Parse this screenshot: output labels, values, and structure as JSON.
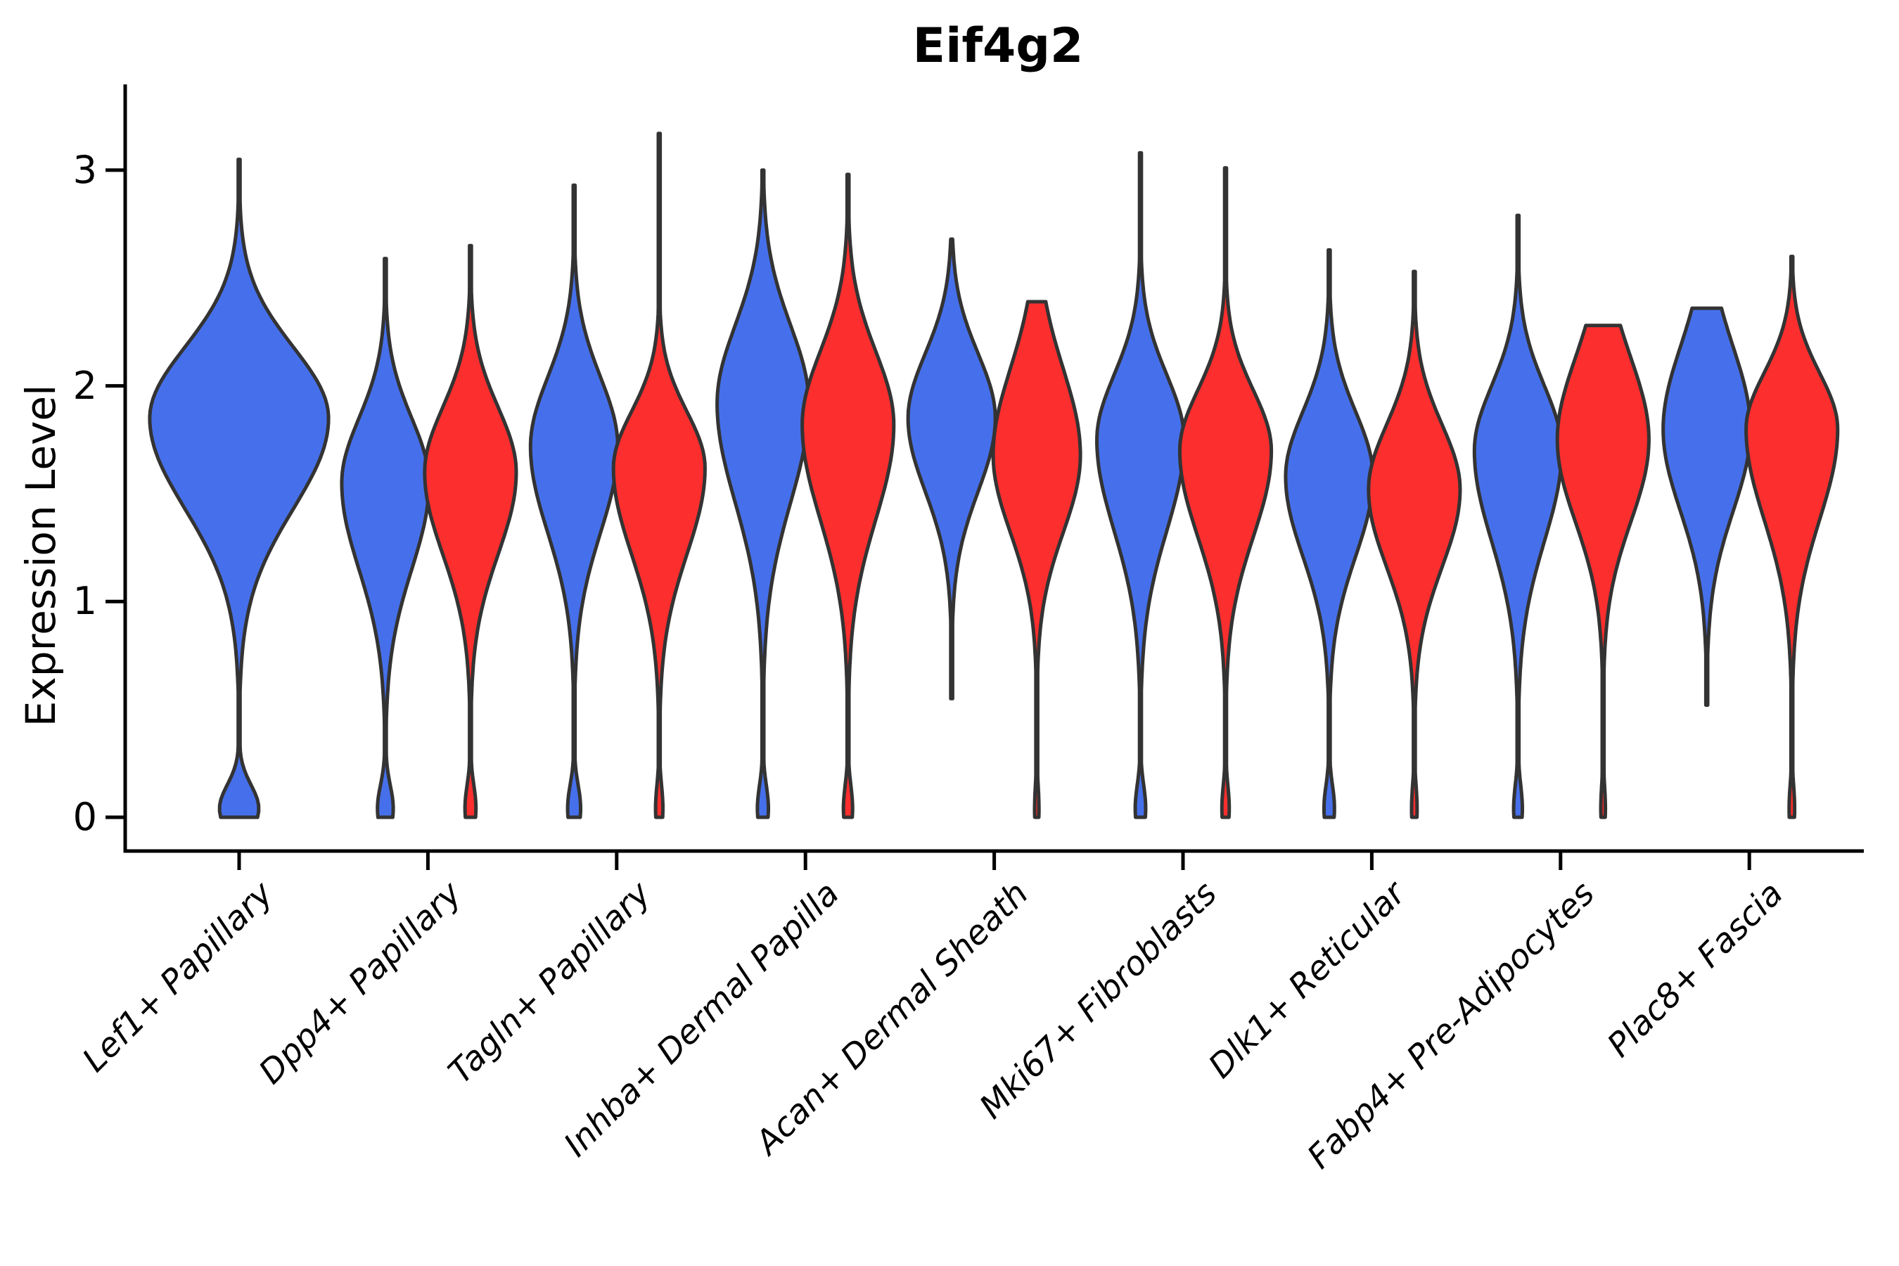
{
  "title": "Eif4g2",
  "y_axis": {
    "label": "Expression Level",
    "ticks": [
      "0",
      "1",
      "2",
      "3"
    ]
  },
  "colors": {
    "blue_fill": "#4670EB",
    "red_fill": "#FC2E2E",
    "violin_outline": "#333333",
    "axis": "#000000"
  },
  "chart_data": {
    "type": "violin",
    "title": "Eif4g2",
    "xlabel": "",
    "ylabel": "Expression Level",
    "ylim": [
      0,
      3.4
    ],
    "y_ticks": [
      0,
      1,
      2,
      3
    ],
    "grid": false,
    "legend": "none",
    "categories": [
      "Lef1+ Papillary",
      "Dpp4+ Papillary",
      "Tagln+ Papillary",
      "Inhba+ Dermal Papilla",
      "Acan+ Dermal Sheath",
      "Mki67+ Fibroblasts",
      "Dlk1+ Reticular",
      "Fabp4+ Pre-Adipocytes",
      "Plac8+ Fascia"
    ],
    "series": [
      "blue",
      "red"
    ],
    "violins": [
      {
        "category": 0,
        "series": "blue",
        "side": "center",
        "max": 3.05,
        "min": 0,
        "peak": 1.85,
        "spread": 0.42,
        "spread_upper": 0.33,
        "rel_width": 2.05,
        "foot": 0.22,
        "flat_top": false
      },
      {
        "category": 1,
        "series": "blue",
        "side": "left",
        "max": 2.59,
        "min": 0,
        "peak": 1.55,
        "spread": 0.4,
        "spread_upper": 0.3,
        "rel_width": 1.0,
        "foot": 0.18,
        "flat_top": false
      },
      {
        "category": 1,
        "series": "red",
        "side": "right",
        "max": 2.65,
        "min": 0,
        "peak": 1.6,
        "spread": 0.38,
        "spread_upper": 0.3,
        "rel_width": 1.05,
        "foot": 0.12,
        "flat_top": false
      },
      {
        "category": 2,
        "series": "blue",
        "side": "left",
        "max": 2.93,
        "min": 0,
        "peak": 1.72,
        "spread": 0.4,
        "spread_upper": 0.32,
        "rel_width": 1.0,
        "foot": 0.15,
        "flat_top": false
      },
      {
        "category": 2,
        "series": "red",
        "side": "right",
        "max": 3.17,
        "min": 0,
        "peak": 1.62,
        "spread": 0.4,
        "spread_upper": 0.26,
        "rel_width": 1.05,
        "foot": 0.08,
        "flat_top": false
      },
      {
        "category": 3,
        "series": "blue",
        "side": "left",
        "max": 3.0,
        "min": 0,
        "peak": 1.92,
        "spread": 0.46,
        "spread_upper": 0.36,
        "rel_width": 1.05,
        "foot": 0.12,
        "flat_top": false
      },
      {
        "category": 3,
        "series": "red",
        "side": "right",
        "max": 2.98,
        "min": 0,
        "peak": 1.82,
        "spread": 0.44,
        "spread_upper": 0.34,
        "rel_width": 1.05,
        "foot": 0.1,
        "flat_top": false
      },
      {
        "category": 4,
        "series": "blue",
        "side": "left",
        "max": 2.68,
        "min": 0.55,
        "peak": 1.85,
        "spread": 0.34,
        "spread_upper": 0.3,
        "rel_width": 1.0,
        "foot": 0.0,
        "flat_top": false
      },
      {
        "category": 4,
        "series": "red",
        "side": "right",
        "max": 2.39,
        "min": 0,
        "peak": 1.68,
        "spread": 0.36,
        "spread_upper": 0.4,
        "rel_width": 1.0,
        "foot": 0.05,
        "flat_top": true
      },
      {
        "category": 5,
        "series": "blue",
        "side": "left",
        "max": 3.08,
        "min": 0,
        "peak": 1.75,
        "spread": 0.42,
        "spread_upper": 0.3,
        "rel_width": 1.0,
        "foot": 0.12,
        "flat_top": false
      },
      {
        "category": 5,
        "series": "red",
        "side": "right",
        "max": 3.01,
        "min": 0,
        "peak": 1.7,
        "spread": 0.4,
        "spread_upper": 0.28,
        "rel_width": 1.05,
        "foot": 0.08,
        "flat_top": false
      },
      {
        "category": 6,
        "series": "blue",
        "side": "left",
        "max": 2.63,
        "min": 0,
        "peak": 1.58,
        "spread": 0.37,
        "spread_upper": 0.3,
        "rel_width": 1.0,
        "foot": 0.12,
        "flat_top": false
      },
      {
        "category": 6,
        "series": "red",
        "side": "right",
        "max": 2.53,
        "min": 0,
        "peak": 1.52,
        "spread": 0.36,
        "spread_upper": 0.3,
        "rel_width": 1.05,
        "foot": 0.06,
        "flat_top": false
      },
      {
        "category": 7,
        "series": "blue",
        "side": "left",
        "max": 2.79,
        "min": 0,
        "peak": 1.7,
        "spread": 0.42,
        "spread_upper": 0.3,
        "rel_width": 1.0,
        "foot": 0.1,
        "flat_top": false
      },
      {
        "category": 7,
        "series": "red",
        "side": "right",
        "max": 2.28,
        "min": 0,
        "peak": 1.75,
        "spread": 0.38,
        "spread_upper": 0.38,
        "rel_width": 1.05,
        "foot": 0.05,
        "flat_top": true
      },
      {
        "category": 8,
        "series": "blue",
        "side": "left",
        "max": 2.36,
        "min": 0.52,
        "peak": 1.8,
        "spread": 0.38,
        "spread_upper": 0.38,
        "rel_width": 1.0,
        "foot": 0.0,
        "flat_top": true
      },
      {
        "category": 8,
        "series": "red",
        "side": "right",
        "max": 2.6,
        "min": 0,
        "peak": 1.8,
        "spread": 0.42,
        "spread_upper": 0.26,
        "rel_width": 1.05,
        "foot": 0.06,
        "flat_top": false
      }
    ]
  }
}
